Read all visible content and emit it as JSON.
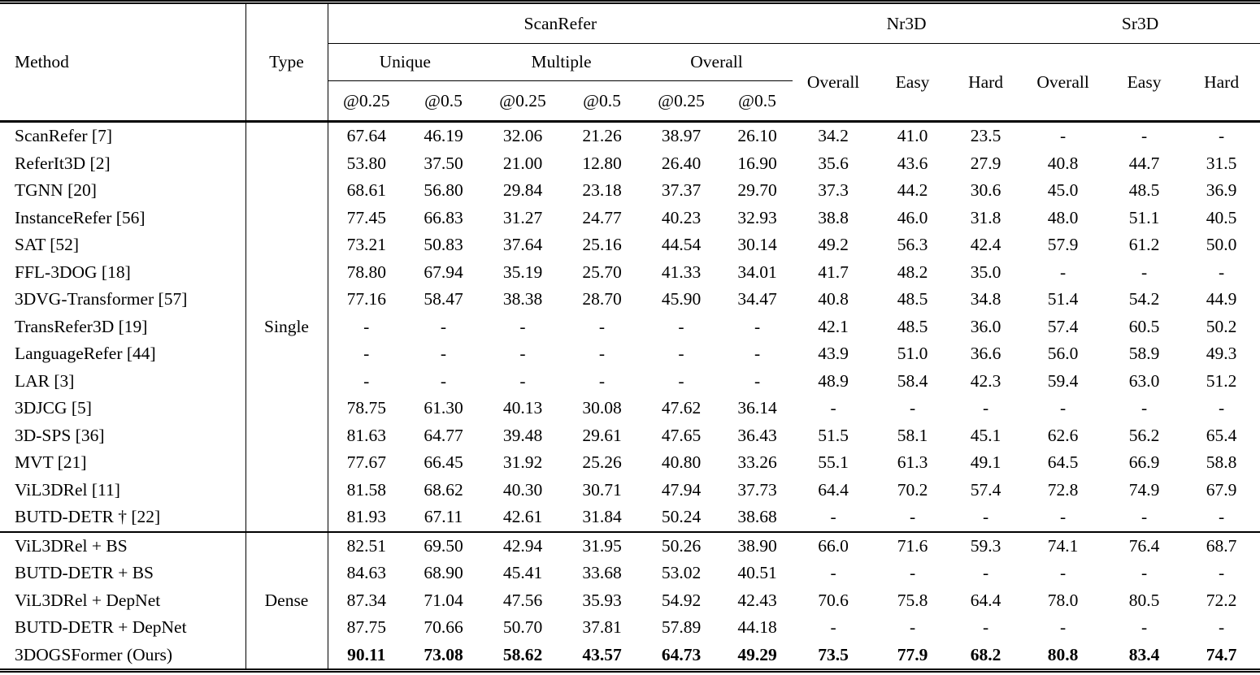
{
  "header": {
    "method_label": "Method",
    "type_label": "Type",
    "scanrefer": {
      "label": "ScanRefer",
      "subgroups": [
        {
          "label": "Unique"
        },
        {
          "label": "Multiple"
        },
        {
          "label": "Overall"
        }
      ],
      "metric_cols": [
        "@0.25",
        "@0.5",
        "@0.25",
        "@0.5",
        "@0.25",
        "@0.5"
      ]
    },
    "nr3d": {
      "label": "Nr3D",
      "cols": [
        "Overall",
        "Easy",
        "Hard"
      ]
    },
    "sr3d": {
      "label": "Sr3D",
      "cols": [
        "Overall",
        "Easy",
        "Hard"
      ]
    }
  },
  "groups": [
    {
      "type": "Single",
      "rows": [
        {
          "method": "ScanRefer [7]",
          "values": [
            "67.64",
            "46.19",
            "32.06",
            "21.26",
            "38.97",
            "26.10",
            "34.2",
            "41.0",
            "23.5",
            "-",
            "-",
            "-"
          ]
        },
        {
          "method": "ReferIt3D [2]",
          "values": [
            "53.80",
            "37.50",
            "21.00",
            "12.80",
            "26.40",
            "16.90",
            "35.6",
            "43.6",
            "27.9",
            "40.8",
            "44.7",
            "31.5"
          ]
        },
        {
          "method": "TGNN [20]",
          "values": [
            "68.61",
            "56.80",
            "29.84",
            "23.18",
            "37.37",
            "29.70",
            "37.3",
            "44.2",
            "30.6",
            "45.0",
            "48.5",
            "36.9"
          ]
        },
        {
          "method": "InstanceRefer [56]",
          "values": [
            "77.45",
            "66.83",
            "31.27",
            "24.77",
            "40.23",
            "32.93",
            "38.8",
            "46.0",
            "31.8",
            "48.0",
            "51.1",
            "40.5"
          ]
        },
        {
          "method": "SAT [52]",
          "values": [
            "73.21",
            "50.83",
            "37.64",
            "25.16",
            "44.54",
            "30.14",
            "49.2",
            "56.3",
            "42.4",
            "57.9",
            "61.2",
            "50.0"
          ]
        },
        {
          "method": "FFL-3DOG [18]",
          "values": [
            "78.80",
            "67.94",
            "35.19",
            "25.70",
            "41.33",
            "34.01",
            "41.7",
            "48.2",
            "35.0",
            "-",
            "-",
            "-"
          ]
        },
        {
          "method": "3DVG-Transformer [57]",
          "values": [
            "77.16",
            "58.47",
            "38.38",
            "28.70",
            "45.90",
            "34.47",
            "40.8",
            "48.5",
            "34.8",
            "51.4",
            "54.2",
            "44.9"
          ]
        },
        {
          "method": "TransRefer3D [19]",
          "values": [
            "-",
            "-",
            "-",
            "-",
            "-",
            "-",
            "42.1",
            "48.5",
            "36.0",
            "57.4",
            "60.5",
            "50.2"
          ]
        },
        {
          "method": "LanguageRefer [44]",
          "values": [
            "-",
            "-",
            "-",
            "-",
            "-",
            "-",
            "43.9",
            "51.0",
            "36.6",
            "56.0",
            "58.9",
            "49.3"
          ]
        },
        {
          "method": "LAR [3]",
          "values": [
            "-",
            "-",
            "-",
            "-",
            "-",
            "-",
            "48.9",
            "58.4",
            "42.3",
            "59.4",
            "63.0",
            "51.2"
          ]
        },
        {
          "method": "3DJCG [5]",
          "values": [
            "78.75",
            "61.30",
            "40.13",
            "30.08",
            "47.62",
            "36.14",
            "-",
            "-",
            "-",
            "-",
            "-",
            "-"
          ]
        },
        {
          "method": "3D-SPS [36]",
          "values": [
            "81.63",
            "64.77",
            "39.48",
            "29.61",
            "47.65",
            "36.43",
            "51.5",
            "58.1",
            "45.1",
            "62.6",
            "56.2",
            "65.4"
          ]
        },
        {
          "method": "MVT [21]",
          "values": [
            "77.67",
            "66.45",
            "31.92",
            "25.26",
            "40.80",
            "33.26",
            "55.1",
            "61.3",
            "49.1",
            "64.5",
            "66.9",
            "58.8"
          ]
        },
        {
          "method": "ViL3DRel [11]",
          "values": [
            "81.58",
            "68.62",
            "40.30",
            "30.71",
            "47.94",
            "37.73",
            "64.4",
            "70.2",
            "57.4",
            "72.8",
            "74.9",
            "67.9"
          ]
        },
        {
          "method": "BUTD-DETR † [22]",
          "values": [
            "81.93",
            "67.11",
            "42.61",
            "31.84",
            "50.24",
            "38.68",
            "-",
            "-",
            "-",
            "-",
            "-",
            "-"
          ]
        }
      ]
    },
    {
      "type": "Dense",
      "rows": [
        {
          "method": "ViL3DRel + BS",
          "values": [
            "82.51",
            "69.50",
            "42.94",
            "31.95",
            "50.26",
            "38.90",
            "66.0",
            "71.6",
            "59.3",
            "74.1",
            "76.4",
            "68.7"
          ]
        },
        {
          "method": "BUTD-DETR + BS",
          "values": [
            "84.63",
            "68.90",
            "45.41",
            "33.68",
            "53.02",
            "40.51",
            "-",
            "-",
            "-",
            "-",
            "-",
            "-"
          ]
        },
        {
          "method": "ViL3DRel + DepNet",
          "values": [
            "87.34",
            "71.04",
            "47.56",
            "35.93",
            "54.92",
            "42.43",
            "70.6",
            "75.8",
            "64.4",
            "78.0",
            "80.5",
            "72.2"
          ]
        },
        {
          "method": "BUTD-DETR + DepNet",
          "values": [
            "87.75",
            "70.66",
            "50.70",
            "37.81",
            "57.89",
            "44.18",
            "-",
            "-",
            "-",
            "-",
            "-",
            "-"
          ]
        },
        {
          "method": "3DOGSFormer (Ours)",
          "values": [
            "90.11",
            "73.08",
            "58.62",
            "43.57",
            "64.73",
            "49.29",
            "73.5",
            "77.9",
            "68.2",
            "80.8",
            "83.4",
            "74.7"
          ],
          "bold": true
        }
      ]
    }
  ]
}
